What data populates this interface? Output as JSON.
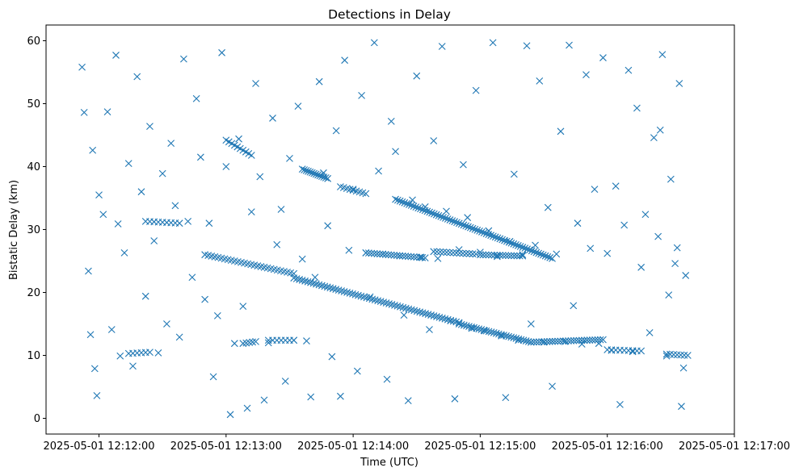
{
  "chart_data": {
    "type": "scatter",
    "title": "Detections in Delay",
    "xlabel": "Time (UTC)",
    "ylabel": "Bistatic Delay (km)",
    "x_ticks": [
      "2025-05-01 12:12:00",
      "2025-05-01 12:13:00",
      "2025-05-01 12:14:00",
      "2025-05-01 12:15:00",
      "2025-05-01 12:16:00",
      "2025-05-01 12:17:00"
    ],
    "y_ticks": [
      "0",
      "10",
      "20",
      "30",
      "40",
      "50",
      "60"
    ],
    "xlim_seconds_after": [
      "2025-05-01 12:11:35",
      "2025-05-01 12:17:00"
    ],
    "ylim": [
      -2.5,
      62.5
    ],
    "marker": "x",
    "color": "#1f77b4",
    "grid": false,
    "legend": "none",
    "series": [
      {
        "points": [
          [
            "12:11:52",
            55.8
          ],
          [
            "12:11:53",
            48.6
          ],
          [
            "12:11:55",
            23.4
          ],
          [
            "12:11:56",
            13.3
          ],
          [
            "12:11:57",
            42.6
          ],
          [
            "12:11:58",
            7.9
          ],
          [
            "12:11:59",
            3.6
          ],
          [
            "12:12:00",
            35.5
          ],
          [
            "12:12:02",
            32.4
          ],
          [
            "12:12:04",
            48.7
          ],
          [
            "12:12:06",
            14.1
          ],
          [
            "12:12:08",
            57.7
          ],
          [
            "12:12:09",
            30.9
          ],
          [
            "12:12:10",
            9.9
          ],
          [
            "12:12:12",
            26.3
          ],
          [
            "12:12:14",
            40.5
          ],
          [
            "12:12:16",
            8.3
          ],
          [
            "12:12:18",
            54.3
          ],
          [
            "12:12:20",
            36.0
          ],
          [
            "12:12:22",
            19.4
          ],
          [
            "12:12:24",
            46.4
          ],
          [
            "12:12:26",
            28.2
          ],
          [
            "12:12:28",
            10.4
          ],
          [
            "12:12:30",
            38.9
          ],
          [
            "12:12:32",
            15.0
          ],
          [
            "12:12:34",
            43.7
          ],
          [
            "12:12:36",
            33.8
          ],
          [
            "12:12:38",
            12.9
          ],
          [
            "12:12:40",
            57.1
          ],
          [
            "12:12:42",
            31.3
          ],
          [
            "12:12:44",
            22.4
          ],
          [
            "12:12:46",
            50.8
          ],
          [
            "12:12:48",
            41.5
          ],
          [
            "12:12:50",
            18.9
          ],
          [
            "12:12:52",
            31.0
          ],
          [
            "12:12:54",
            6.6
          ],
          [
            "12:12:56",
            16.3
          ],
          [
            "12:12:58",
            58.1
          ],
          [
            "12:13:00",
            40.0
          ],
          [
            "12:13:02",
            0.6
          ],
          [
            "12:13:04",
            11.9
          ],
          [
            "12:13:06",
            44.4
          ],
          [
            "12:13:08",
            17.8
          ],
          [
            "12:13:10",
            1.6
          ],
          [
            "12:13:12",
            32.8
          ],
          [
            "12:13:14",
            53.2
          ],
          [
            "12:13:16",
            38.4
          ],
          [
            "12:13:18",
            2.9
          ],
          [
            "12:13:20",
            12.0
          ],
          [
            "12:13:22",
            47.7
          ],
          [
            "12:13:24",
            27.6
          ],
          [
            "12:13:26",
            33.2
          ],
          [
            "12:13:28",
            5.9
          ],
          [
            "12:13:30",
            41.3
          ],
          [
            "12:13:32",
            12.4
          ],
          [
            "12:13:34",
            49.6
          ],
          [
            "12:13:36",
            25.3
          ],
          [
            "12:13:38",
            12.3
          ],
          [
            "12:13:40",
            3.4
          ],
          [
            "12:13:42",
            22.4
          ],
          [
            "12:13:44",
            53.5
          ],
          [
            "12:13:46",
            39.0
          ],
          [
            "12:13:48",
            30.6
          ],
          [
            "12:13:50",
            9.8
          ],
          [
            "12:13:52",
            45.7
          ],
          [
            "12:13:54",
            3.5
          ],
          [
            "12:13:56",
            56.9
          ],
          [
            "12:13:58",
            26.7
          ],
          [
            "12:14:00",
            36.4
          ],
          [
            "12:14:02",
            7.5
          ],
          [
            "12:14:04",
            51.3
          ],
          [
            "12:14:06",
            26.3
          ],
          [
            "12:14:08",
            19.3
          ],
          [
            "12:14:10",
            59.7
          ],
          [
            "12:14:12",
            39.3
          ],
          [
            "12:14:14",
            26.1
          ],
          [
            "12:14:16",
            6.2
          ],
          [
            "12:14:18",
            47.2
          ],
          [
            "12:14:20",
            42.4
          ],
          [
            "12:14:22",
            25.8
          ],
          [
            "12:14:24",
            16.4
          ],
          [
            "12:14:26",
            2.8
          ],
          [
            "12:14:28",
            34.7
          ],
          [
            "12:14:30",
            54.4
          ],
          [
            "12:14:32",
            25.6
          ],
          [
            "12:14:34",
            33.6
          ],
          [
            "12:14:36",
            14.1
          ],
          [
            "12:14:38",
            44.1
          ],
          [
            "12:14:40",
            25.4
          ],
          [
            "12:14:42",
            59.1
          ],
          [
            "12:14:44",
            32.9
          ],
          [
            "12:14:46",
            15.5
          ],
          [
            "12:14:48",
            3.1
          ],
          [
            "12:14:50",
            26.8
          ],
          [
            "12:14:52",
            40.3
          ],
          [
            "12:14:54",
            31.9
          ],
          [
            "12:14:56",
            14.3
          ],
          [
            "12:14:58",
            52.1
          ],
          [
            "12:15:00",
            26.4
          ],
          [
            "12:15:02",
            13.9
          ],
          [
            "12:15:04",
            29.8
          ],
          [
            "12:15:06",
            59.7
          ],
          [
            "12:15:08",
            25.7
          ],
          [
            "12:15:10",
            13.1
          ],
          [
            "12:15:12",
            3.3
          ],
          [
            "12:15:14",
            28.1
          ],
          [
            "12:15:16",
            38.8
          ],
          [
            "12:15:18",
            12.4
          ],
          [
            "12:15:20",
            26.0
          ],
          [
            "12:15:22",
            59.2
          ],
          [
            "12:15:24",
            15.0
          ],
          [
            "12:15:26",
            27.5
          ],
          [
            "12:15:28",
            53.6
          ],
          [
            "12:15:30",
            12.1
          ],
          [
            "12:15:32",
            33.5
          ],
          [
            "12:15:34",
            5.1
          ],
          [
            "12:15:36",
            26.1
          ],
          [
            "12:15:38",
            45.6
          ],
          [
            "12:15:40",
            12.2
          ],
          [
            "12:15:42",
            59.3
          ],
          [
            "12:15:44",
            17.9
          ],
          [
            "12:15:46",
            31.0
          ],
          [
            "12:15:48",
            11.8
          ],
          [
            "12:15:50",
            54.6
          ],
          [
            "12:15:52",
            27.0
          ],
          [
            "12:15:54",
            36.4
          ],
          [
            "12:15:56",
            11.9
          ],
          [
            "12:15:58",
            57.3
          ],
          [
            "12:16:00",
            26.2
          ],
          [
            "12:16:02",
            10.8
          ],
          [
            "12:16:04",
            36.9
          ],
          [
            "12:16:06",
            2.2
          ],
          [
            "12:16:08",
            30.7
          ],
          [
            "12:16:10",
            55.3
          ],
          [
            "12:16:12",
            10.6
          ],
          [
            "12:16:14",
            49.3
          ],
          [
            "12:16:16",
            24.0
          ],
          [
            "12:16:18",
            32.4
          ],
          [
            "12:16:20",
            13.6
          ],
          [
            "12:16:22",
            44.6
          ],
          [
            "12:16:24",
            28.9
          ],
          [
            "12:16:26",
            57.8
          ],
          [
            "12:16:28",
            9.9
          ],
          [
            "12:16:30",
            38.0
          ],
          [
            "12:16:32",
            24.6
          ],
          [
            "12:16:34",
            53.2
          ],
          [
            "12:16:36",
            8.0
          ],
          [
            "12:16:37",
            22.7
          ],
          [
            "12:16:35",
            1.9
          ],
          [
            "12:16:33",
            27.1
          ],
          [
            "12:16:29",
            19.6
          ],
          [
            "12:16:25",
            45.8
          ]
        ]
      }
    ],
    "tracks": [
      {
        "from": [
          "12:12:50",
          26.0
        ],
        "to": [
          "12:13:32",
          23.0
        ],
        "count": 28
      },
      {
        "from": [
          "12:13:32",
          22.3
        ],
        "to": [
          "12:14:50",
          15.2
        ],
        "count": 60
      },
      {
        "from": [
          "12:14:50",
          15.0
        ],
        "to": [
          "12:15:24",
          12.1
        ],
        "count": 30
      },
      {
        "from": [
          "12:15:24",
          12.1
        ],
        "to": [
          "12:15:58",
          12.5
        ],
        "count": 28
      },
      {
        "from": [
          "12:14:20",
          34.8
        ],
        "to": [
          "12:15:34",
          25.4
        ],
        "count": 70
      },
      {
        "from": [
          "12:13:00",
          44.2
        ],
        "to": [
          "12:13:12",
          41.8
        ],
        "count": 10
      },
      {
        "from": [
          "12:13:36",
          39.6
        ],
        "to": [
          "12:13:48",
          38.1
        ],
        "count": 14
      },
      {
        "from": [
          "12:13:54",
          36.8
        ],
        "to": [
          "12:14:06",
          35.7
        ],
        "count": 9
      },
      {
        "from": [
          "12:14:06",
          26.3
        ],
        "to": [
          "12:14:34",
          25.5
        ],
        "count": 22
      },
      {
        "from": [
          "12:14:38",
          26.5
        ],
        "to": [
          "12:14:58",
          26.1
        ],
        "count": 14
      },
      {
        "from": [
          "12:15:00",
          26.0
        ],
        "to": [
          "12:15:20",
          25.8
        ],
        "count": 16
      },
      {
        "from": [
          "12:12:22",
          31.3
        ],
        "to": [
          "12:12:38",
          31.0
        ],
        "count": 9
      },
      {
        "from": [
          "12:16:00",
          10.9
        ],
        "to": [
          "12:16:16",
          10.7
        ],
        "count": 9
      },
      {
        "from": [
          "12:16:28",
          10.2
        ],
        "to": [
          "12:16:38",
          10.0
        ],
        "count": 7
      },
      {
        "from": [
          "12:12:14",
          10.3
        ],
        "to": [
          "12:12:24",
          10.5
        ],
        "count": 6
      },
      {
        "from": [
          "12:13:08",
          11.9
        ],
        "to": [
          "12:13:14",
          12.2
        ],
        "count": 5
      },
      {
        "from": [
          "12:13:20",
          12.4
        ],
        "to": [
          "12:13:32",
          12.4
        ],
        "count": 7
      }
    ]
  }
}
